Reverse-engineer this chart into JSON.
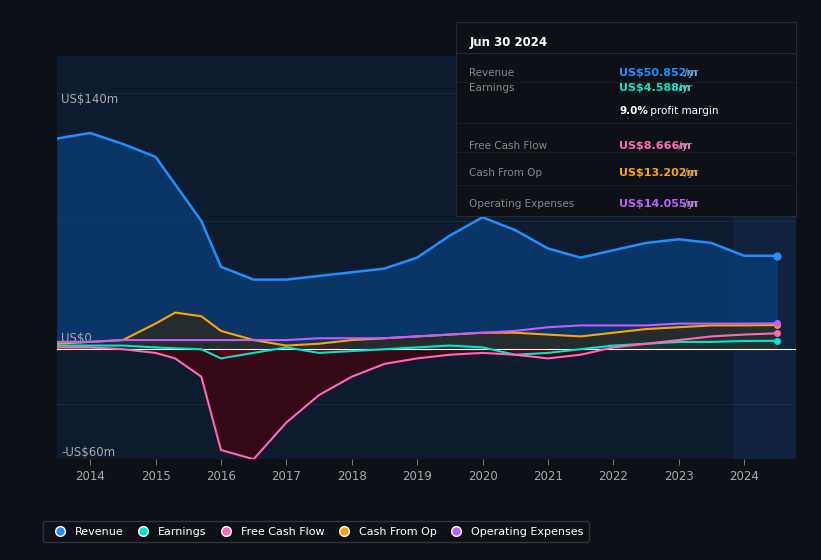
{
  "bg_color": "#0d1117",
  "plot_bg_color": "#0d1b2e",
  "grid_color": "#1e3050",
  "ylabel_top": "US$140m",
  "ylabel_zero": "US$0",
  "ylabel_bottom": "-US$60m",
  "ylim": [
    -60,
    160
  ],
  "xlim": [
    2013.5,
    2024.8
  ],
  "xticks": [
    2014,
    2015,
    2016,
    2017,
    2018,
    2019,
    2020,
    2021,
    2022,
    2023,
    2024
  ],
  "years": [
    2013.5,
    2014,
    2014.5,
    2015,
    2015.3,
    2015.7,
    2016,
    2016.5,
    2017,
    2017.5,
    2018,
    2018.5,
    2019,
    2019.5,
    2020,
    2020.5,
    2021,
    2021.5,
    2022,
    2022.5,
    2023,
    2023.5,
    2024,
    2024.5
  ],
  "revenue": [
    115,
    118,
    112,
    105,
    90,
    70,
    45,
    38,
    38,
    40,
    42,
    44,
    50,
    62,
    72,
    65,
    55,
    50,
    54,
    58,
    60,
    58,
    51,
    51
  ],
  "earnings": [
    2,
    2,
    2,
    1,
    0.5,
    0,
    -5,
    -2,
    1,
    -2,
    -1,
    0,
    1,
    2,
    1,
    -3,
    -2,
    0,
    2,
    3,
    4,
    4,
    4.5,
    4.6
  ],
  "free_cash_flow": [
    1,
    1,
    0,
    -2,
    -5,
    -15,
    -55,
    -60,
    -40,
    -25,
    -15,
    -8,
    -5,
    -3,
    -2,
    -3,
    -5,
    -3,
    1,
    3,
    5,
    7,
    8,
    8.7
  ],
  "cash_from_op": [
    3,
    4,
    5,
    14,
    20,
    18,
    10,
    5,
    2,
    3,
    5,
    6,
    7,
    8,
    9,
    9,
    8,
    7,
    9,
    11,
    12,
    13,
    13,
    13.2
  ],
  "operating_expenses": [
    4,
    4,
    5,
    5,
    5,
    5,
    5,
    5,
    5,
    6,
    6,
    6,
    7,
    8,
    9,
    10,
    12,
    13,
    13,
    13,
    14,
    14,
    14,
    14.1
  ],
  "info_box": {
    "date": "Jun 30 2024",
    "revenue_val": "US$50.852m",
    "revenue_color": "#1e90ff",
    "earnings_val": "US$4.588m",
    "earnings_color": "#00e5cc",
    "profit_margin": "9.0%",
    "fcf_val": "US$8.666m",
    "fcf_color": "#ff69b4",
    "cash_op_val": "US$13.202m",
    "cash_op_color": "#ffa500",
    "op_exp_val": "US$14.055m",
    "op_exp_color": "#bf5fff"
  },
  "legend": [
    {
      "label": "Revenue",
      "color": "#1e90ff"
    },
    {
      "label": "Earnings",
      "color": "#00e5cc"
    },
    {
      "label": "Free Cash Flow",
      "color": "#ff69b4"
    },
    {
      "label": "Cash From Op",
      "color": "#ffa500"
    },
    {
      "label": "Operating Expenses",
      "color": "#bf5fff"
    }
  ],
  "revenue_color": "#1e90ff",
  "revenue_fill_color": "#0a3a6e",
  "earnings_color": "#00e5cc",
  "fcf_color": "#ff69b4",
  "cash_op_color": "#ffa500",
  "op_exp_color": "#bf5fff",
  "zero_line_color": "#ffffff"
}
